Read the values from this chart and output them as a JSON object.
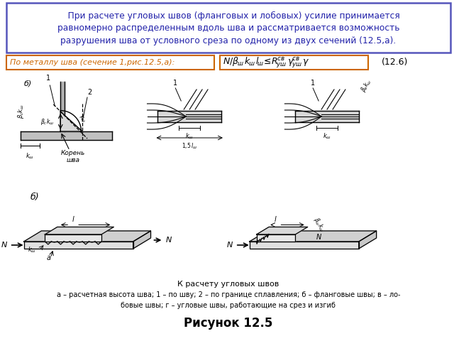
{
  "title": "Рисунок 12.5",
  "top_text_line1": "    При расчете угловых швов (фланговых и лобовых) усилие принимается",
  "top_text_line2": "равномерно распределенным вдоль шва и рассматривается возможность",
  "top_text_line3": "разрушения шва от условного среза по одному из двух сечений (12.5,а).",
  "box1_text": "По металлу шва (сечение 1,рис.12.5,а):",
  "formula_number": "(12.6)",
  "caption_bold": "К расчету угловых швов",
  "caption_small1": "а – расчетная высота шва; 1 – по шву; 2 – по границе сплавления; б – фланговые швы; в – ло-",
  "caption_small2": "бовые швы; г – угловые швы, работающие на срез и изгиб",
  "top_box_color": "#5555bb",
  "box1_border_color": "#cc6600",
  "box1_text_color": "#cc6600",
  "formula_box_color": "#cc6600",
  "bg_color": "#ffffff",
  "text_color_blue": "#2222aa",
  "drawing_bg": "#f5f0e8"
}
